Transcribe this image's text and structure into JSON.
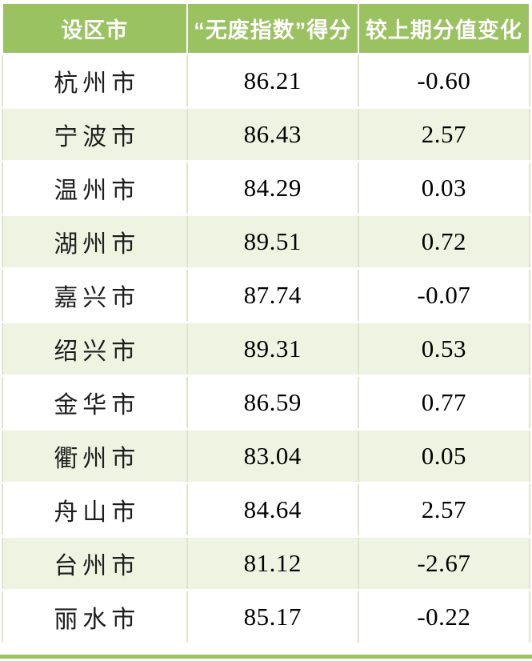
{
  "colors": {
    "header_green": "#9ac261",
    "row_alt_green": "#eff4e2",
    "grid_line": "#dfe5cd",
    "header_text": "#ffffff",
    "body_text": "#141414"
  },
  "table": {
    "columns": [
      "设区市",
      "“无废指数”得分",
      "较上期分值变化"
    ],
    "rows": [
      {
        "city": "杭州市",
        "score": "86.21",
        "change": "-0.60"
      },
      {
        "city": "宁波市",
        "score": "86.43",
        "change": "2.57"
      },
      {
        "city": "温州市",
        "score": "84.29",
        "change": "0.03"
      },
      {
        "city": "湖州市",
        "score": "89.51",
        "change": "0.72"
      },
      {
        "city": "嘉兴市",
        "score": "87.74",
        "change": "-0.07"
      },
      {
        "city": "绍兴市",
        "score": "89.31",
        "change": "0.53"
      },
      {
        "city": "金华市",
        "score": "86.59",
        "change": "0.77"
      },
      {
        "city": "衢州市",
        "score": "83.04",
        "change": "0.05"
      },
      {
        "city": "舟山市",
        "score": "84.64",
        "change": "2.57"
      },
      {
        "city": "台州市",
        "score": "81.12",
        "change": "-2.67"
      },
      {
        "city": "丽水市",
        "score": "85.17",
        "change": "-0.22"
      }
    ]
  }
}
